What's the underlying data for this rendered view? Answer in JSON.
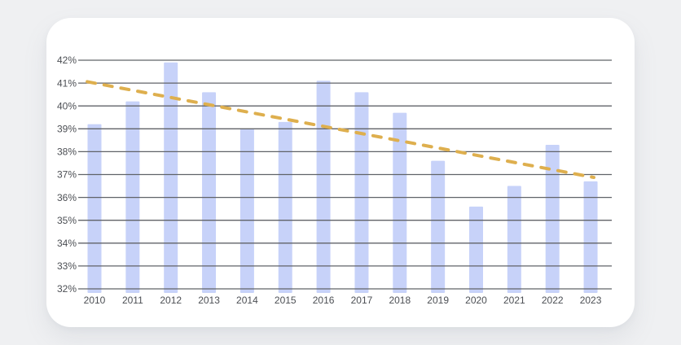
{
  "page": {
    "background_color": "#EFF0F2"
  },
  "card": {
    "background_color": "#FFFFFF"
  },
  "chart_data": {
    "type": "bar",
    "title": "",
    "xlabel": "",
    "ylabel": "",
    "categories": [
      "2010",
      "2011",
      "2012",
      "2013",
      "2014",
      "2015",
      "2016",
      "2017",
      "2018",
      "2019",
      "2020",
      "2021",
      "2022",
      "2023"
    ],
    "series": [
      {
        "name": "yearly-percentage-bars",
        "type": "bar",
        "color": "#C7D2F9",
        "values": [
          39.2,
          40.2,
          41.9,
          40.6,
          39.0,
          39.3,
          41.1,
          40.6,
          39.7,
          37.6,
          35.6,
          36.5,
          38.3,
          36.7
        ]
      },
      {
        "name": "trend-line",
        "type": "dashed_line",
        "color": "#DEAF4E",
        "points": [
          {
            "category": "2010",
            "value": 41.0
          },
          {
            "category": "2023",
            "value": 36.9
          }
        ]
      }
    ],
    "ylim": [
      32,
      42
    ],
    "ytick_values": [
      42,
      41,
      40,
      39,
      38,
      37,
      36,
      35,
      34,
      33,
      32
    ],
    "ytick_labels": [
      "42%",
      "41%",
      "40%",
      "39%",
      "38%",
      "37%",
      "36%",
      "35%",
      "34%",
      "33%",
      "32%"
    ],
    "grid": "horizontal",
    "gridline_color": "#606368",
    "axis_label_color": "#4C4F54",
    "legend": "none"
  }
}
